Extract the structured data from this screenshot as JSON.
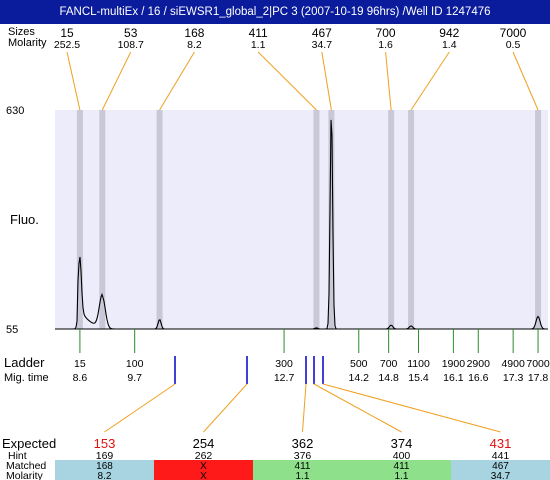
{
  "title": "FANCL-multiEx / 16 / siEWSR1_global_2|PC 3 (2007-10-19 96hrs) /Well ID 1247476",
  "labels": {
    "sizes": "Sizes",
    "molarity_top": "Molarity",
    "fluo": "Fluo.",
    "ladder": "Ladder",
    "mig_time": "Mig. time",
    "expected": "Expected",
    "hint": "Hint",
    "matched": "Matched",
    "molarity_bottom": "Molarity"
  },
  "colors": {
    "title_bg": "#0a1c9c",
    "plot_bg": "#ececfa",
    "peak_band": "#c8c8d8",
    "callout_line": "#f0a020",
    "ladder_tick": "#2a8a2a",
    "marker_tick": "#0000cc",
    "expected_warn": "#e01010",
    "cell_ok": "#8ee08a",
    "cell_fail": "#ff1a1a",
    "cell_info": "#a8d4e2"
  },
  "chart_data": {
    "type": "line",
    "ylabel": "Fluo.",
    "y_ticks": [
      "630",
      "55"
    ],
    "ylim": [
      55,
      630
    ],
    "xlim": [
      8.1,
      18.0
    ],
    "peaks": [
      {
        "size": "15",
        "molarity": "252.5",
        "time": 8.6,
        "height": 190
      },
      {
        "size": "53",
        "molarity": "108.7",
        "time": 9.05,
        "height": 140
      },
      {
        "size": "168",
        "molarity": "8.2",
        "time": 10.2,
        "height": 80
      },
      {
        "size": "411",
        "molarity": "1.1",
        "time": 13.35,
        "height": 58
      },
      {
        "size": "467",
        "molarity": "34.7",
        "time": 13.65,
        "height": 630
      },
      {
        "size": "700",
        "molarity": "1.6",
        "time": 14.85,
        "height": 65
      },
      {
        "size": "942",
        "molarity": "1.4",
        "time": 15.25,
        "height": 63
      },
      {
        "size": "7000",
        "molarity": "0.5",
        "time": 17.8,
        "height": 88
      }
    ],
    "ladder": [
      {
        "size": "15",
        "time": "8.6"
      },
      {
        "size": "100",
        "time": "9.7"
      },
      {
        "size": "300",
        "time": "12.7"
      },
      {
        "size": "500",
        "time": "14.2"
      },
      {
        "size": "700",
        "time": "14.8"
      },
      {
        "size": "1100",
        "time": "15.4"
      },
      {
        "size": "1900",
        "time": "16.1"
      },
      {
        "size": "2900",
        "time": "16.6"
      },
      {
        "size": "4900",
        "time": "17.3"
      },
      {
        "size": "7000",
        "time": "17.8"
      }
    ],
    "expected": [
      {
        "expected": "153",
        "warn": true,
        "hint": "169",
        "matched": "168",
        "molarity": "8.2",
        "status": "info"
      },
      {
        "expected": "254",
        "warn": false,
        "hint": "262",
        "matched": "X",
        "molarity": "X",
        "status": "fail"
      },
      {
        "expected": "362",
        "warn": false,
        "hint": "376",
        "matched": "411",
        "molarity": "1.1",
        "status": "ok"
      },
      {
        "expected": "374",
        "warn": false,
        "hint": "400",
        "matched": "411",
        "molarity": "1.1",
        "status": "ok"
      },
      {
        "expected": "431",
        "warn": true,
        "hint": "441",
        "matched": "467",
        "molarity": "34.7",
        "status": "info"
      }
    ]
  }
}
